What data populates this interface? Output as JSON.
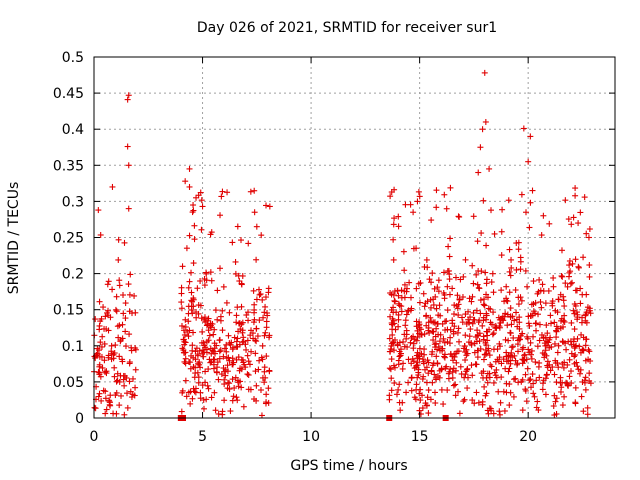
{
  "chart_data": {
    "type": "scatter",
    "title": "Day 026 of 2021, SRMTID for receiver sur1",
    "xlabel": "GPS time / hours",
    "ylabel": "SRMTID / TECUs",
    "xlim": [
      0,
      24
    ],
    "ylim": [
      0,
      0.5
    ],
    "grid": true,
    "marker": "+",
    "color": "#e00000",
    "x_ticks": [
      {
        "value": 0,
        "label": "0"
      },
      {
        "value": 5,
        "label": "5"
      },
      {
        "value": 10,
        "label": "10"
      },
      {
        "value": 15,
        "label": "15"
      },
      {
        "value": 20,
        "label": "20"
      }
    ],
    "y_ticks": [
      {
        "value": 0,
        "label": "0"
      },
      {
        "value": 0.05,
        "label": "0.05"
      },
      {
        "value": 0.1,
        "label": "0.1"
      },
      {
        "value": 0.15,
        "label": "0.15"
      },
      {
        "value": 0.2,
        "label": "0.2"
      },
      {
        "value": 0.25,
        "label": "0.25"
      },
      {
        "value": 0.3,
        "label": "0.3"
      },
      {
        "value": 0.35,
        "label": "0.35"
      },
      {
        "value": 0.4,
        "label": "0.4"
      },
      {
        "value": 0.45,
        "label": "0.45"
      },
      {
        "value": 0.5,
        "label": "0.5"
      }
    ],
    "segments": [
      {
        "x_start": 0.0,
        "x_end": 2.0,
        "count": 140,
        "base": 0.08,
        "spread": 0.07
      },
      {
        "x_start": 4.0,
        "x_end": 8.1,
        "count": 360,
        "base": 0.1,
        "spread": 0.06
      },
      {
        "x_start": 13.6,
        "x_end": 22.9,
        "count": 900,
        "base": 0.1,
        "spread": 0.065
      }
    ],
    "highlight_points": [
      {
        "x": 1.6,
        "y": 0.447
      },
      {
        "x": 1.55,
        "y": 0.441
      },
      {
        "x": 1.55,
        "y": 0.376
      },
      {
        "x": 1.6,
        "y": 0.35
      },
      {
        "x": 0.85,
        "y": 0.32
      },
      {
        "x": 1.6,
        "y": 0.29
      },
      {
        "x": 0.2,
        "y": 0.288
      },
      {
        "x": 4.2,
        "y": 0.328
      },
      {
        "x": 4.4,
        "y": 0.345
      },
      {
        "x": 4.4,
        "y": 0.32
      },
      {
        "x": 4.7,
        "y": 0.305
      },
      {
        "x": 5.0,
        "y": 0.293
      },
      {
        "x": 7.4,
        "y": 0.285
      },
      {
        "x": 8.1,
        "y": 0.293
      },
      {
        "x": 7.5,
        "y": 0.265
      },
      {
        "x": 14.9,
        "y": 0.3
      },
      {
        "x": 14.7,
        "y": 0.285
      },
      {
        "x": 17.8,
        "y": 0.375
      },
      {
        "x": 18.0,
        "y": 0.478
      },
      {
        "x": 18.05,
        "y": 0.41
      },
      {
        "x": 17.9,
        "y": 0.4
      },
      {
        "x": 18.2,
        "y": 0.345
      },
      {
        "x": 19.8,
        "y": 0.401
      },
      {
        "x": 20.1,
        "y": 0.39
      },
      {
        "x": 20.0,
        "y": 0.355
      },
      {
        "x": 20.2,
        "y": 0.315
      },
      {
        "x": 19.9,
        "y": 0.285
      },
      {
        "x": 17.7,
        "y": 0.34
      },
      {
        "x": 22.3,
        "y": 0.27
      },
      {
        "x": 22.8,
        "y": 0.25
      }
    ],
    "zero_markers": [
      {
        "x": 4.0,
        "y": 0
      },
      {
        "x": 4.1,
        "y": 0
      },
      {
        "x": 13.6,
        "y": 0
      },
      {
        "x": 16.2,
        "y": 0
      }
    ]
  }
}
